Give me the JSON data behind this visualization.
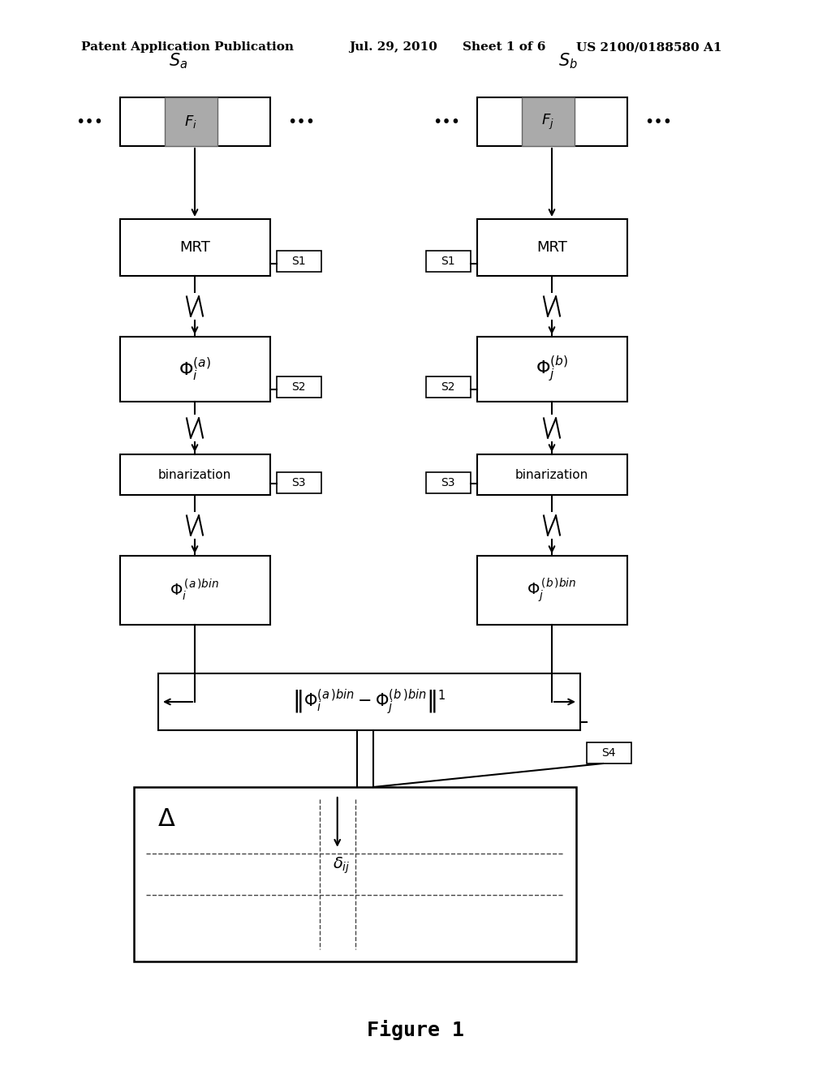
{
  "bg_color": "#ffffff",
  "header_line1": "Patent Application Publication",
  "header_date": "Jul. 29, 2010",
  "header_sheet": "Sheet 1 of 6",
  "header_patent": "US 2100/0188580 A1",
  "figure_label": "Figure 1"
}
